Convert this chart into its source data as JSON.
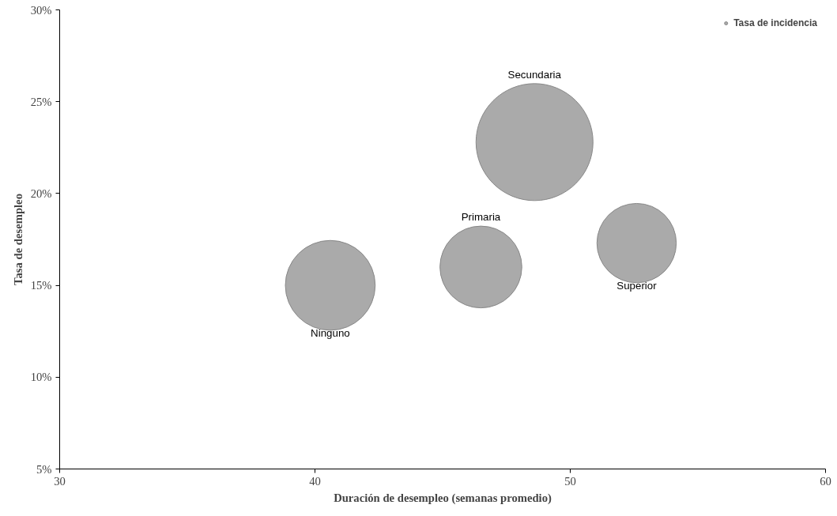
{
  "chart_data": {
    "type": "bubble",
    "xlabel": "Duración de desempleo (semanas promedio)",
    "ylabel": "Tasa de desempleo",
    "xlim": [
      30,
      60
    ],
    "xticks": [
      30,
      40,
      50,
      60
    ],
    "ylim": [
      5,
      30
    ],
    "yticks": [
      {
        "value": 5,
        "label": "5%"
      },
      {
        "value": 10,
        "label": "10%"
      },
      {
        "value": 15,
        "label": "15%"
      },
      {
        "value": 20,
        "label": "20%"
      },
      {
        "value": 25,
        "label": "25%"
      },
      {
        "value": 30,
        "label": "30%"
      }
    ],
    "series": [
      {
        "name": "Tasa de incidencia",
        "color": "#aaaaaa",
        "x": [
          40.6,
          46.5,
          48.6,
          52.6
        ],
        "values": [
          15.0,
          16.0,
          22.8,
          17.3
        ],
        "sizes": [
          0.59,
          0.49,
          1,
          0.46
        ]
      }
    ],
    "annotations": [
      "Ninguno",
      "Primaria",
      "Secundaria",
      "Superior"
    ],
    "legend": "top right",
    "grid": false
  }
}
